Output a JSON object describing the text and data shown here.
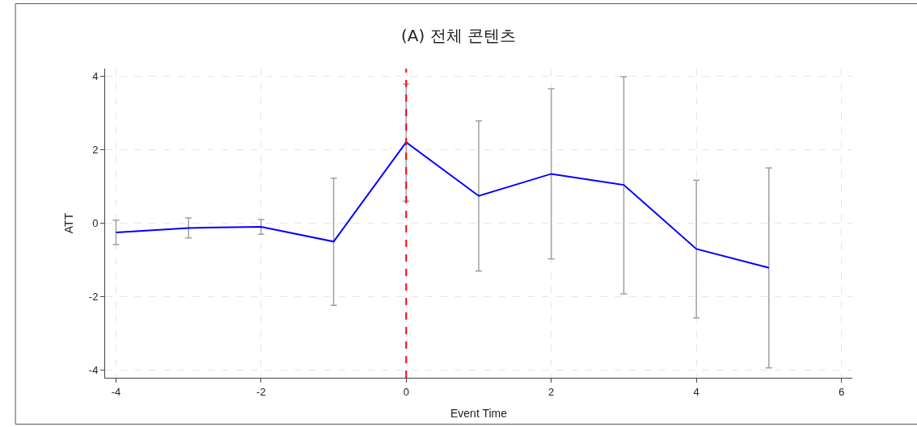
{
  "chart_data": {
    "type": "line",
    "title": "(A) 전체 콘텐츠",
    "xlabel": "Event Time",
    "ylabel": "ATT",
    "x": [
      -4,
      -3,
      -2,
      -1,
      0,
      1,
      2,
      3,
      4,
      5
    ],
    "series": [
      {
        "color": "#0000ff",
        "values": [
          -0.25,
          -0.13,
          -0.1,
          -0.5,
          2.2,
          0.74,
          1.34,
          1.04,
          -0.7,
          -1.21
        ],
        "errors": [
          [
            -0.58,
            0.08
          ],
          [
            -0.4,
            0.14
          ],
          [
            -0.3,
            0.1
          ],
          [
            -2.23,
            1.22
          ],
          [
            0.6,
            3.78
          ],
          [
            -1.3,
            2.78
          ],
          [
            -0.97,
            3.65
          ],
          [
            -1.92,
            3.98
          ],
          [
            -2.57,
            1.17
          ],
          [
            -3.93,
            1.5
          ]
        ]
      }
    ],
    "xlim": [
      -4.15,
      6.15
    ],
    "ylim": [
      -4.2,
      4.2
    ],
    "xticks": [
      -4,
      -2,
      0,
      2,
      4,
      6
    ],
    "yticks": [
      -4,
      -2,
      0,
      2,
      4
    ],
    "ref_lines": [
      {
        "axis": "x",
        "value": 0,
        "color": "#ff0000",
        "line_style": "dashed"
      }
    ],
    "grid": true,
    "marker": "none",
    "line_style": "solid"
  }
}
